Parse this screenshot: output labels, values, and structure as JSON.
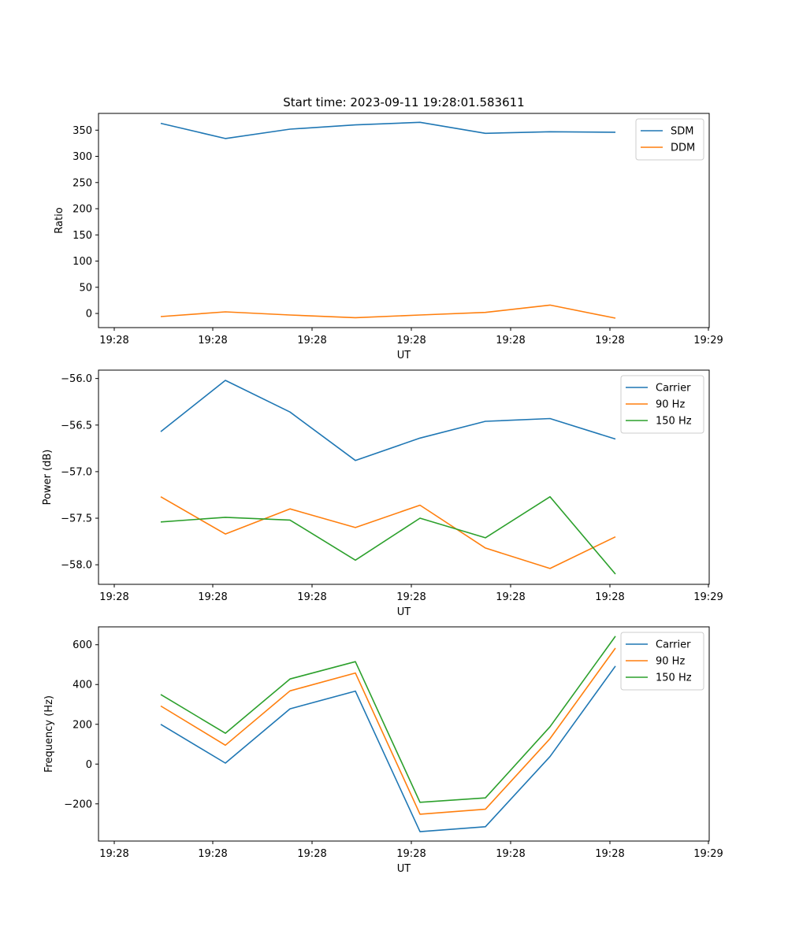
{
  "chart_data": [
    {
      "type": "line",
      "title": "Start time: 2023-09-11 19:28:01.583611",
      "xlabel": "UT",
      "ylabel": "Ratio",
      "x_tick_labels": [
        "19:28",
        "19:28",
        "19:28",
        "19:28",
        "19:28",
        "19:28",
        "19:29"
      ],
      "ylim": [
        -27,
        382
      ],
      "y_ticks": [
        0,
        50,
        100,
        150,
        200,
        250,
        300,
        350
      ],
      "y_tick_labels": [
        "0",
        "50",
        "100",
        "150",
        "200",
        "250",
        "300",
        "350"
      ],
      "legend_position": "top-right",
      "series": [
        {
          "name": "SDM",
          "color": "#1f77b4",
          "values": [
            363,
            334,
            352,
            360,
            365,
            344,
            347,
            346
          ]
        },
        {
          "name": "DDM",
          "color": "#ff7f0e",
          "values": [
            -6,
            3,
            -3,
            -8,
            -3,
            2,
            16,
            -9
          ]
        }
      ]
    },
    {
      "type": "line",
      "title": "",
      "xlabel": "UT",
      "ylabel": "Power (dB)",
      "x_tick_labels": [
        "19:28",
        "19:28",
        "19:28",
        "19:28",
        "19:28",
        "19:28",
        "19:29"
      ],
      "ylim": [
        -58.21,
        -55.91
      ],
      "y_ticks": [
        -58.0,
        -57.5,
        -57.0,
        -56.5,
        -56.0
      ],
      "y_tick_labels": [
        "−58.0",
        "−57.5",
        "−57.0",
        "−56.5",
        "−56.0"
      ],
      "legend_position": "top-right",
      "series": [
        {
          "name": "Carrier",
          "color": "#1f77b4",
          "values": [
            -56.57,
            -56.02,
            -56.36,
            -56.88,
            -56.64,
            -56.46,
            -56.43,
            -56.65
          ]
        },
        {
          "name": "90 Hz",
          "color": "#ff7f0e",
          "values": [
            -57.27,
            -57.67,
            -57.4,
            -57.6,
            -57.36,
            -57.82,
            -58.04,
            -57.7
          ]
        },
        {
          "name": "150 Hz",
          "color": "#2ca02c",
          "values": [
            -57.54,
            -57.49,
            -57.52,
            -57.95,
            -57.5,
            -57.71,
            -57.27,
            -58.1
          ]
        }
      ]
    },
    {
      "type": "line",
      "title": "",
      "xlabel": "UT",
      "ylabel": "Frequency (Hz)",
      "x_tick_labels": [
        "19:28",
        "19:28",
        "19:28",
        "19:28",
        "19:28",
        "19:28",
        "19:29"
      ],
      "ylim": [
        -387,
        690
      ],
      "y_ticks": [
        -200,
        0,
        200,
        400,
        600
      ],
      "y_tick_labels": [
        "−200",
        "0",
        "200",
        "400",
        "600"
      ],
      "legend_position": "top-right",
      "series": [
        {
          "name": "Carrier",
          "color": "#1f77b4",
          "values": [
            200,
            5,
            278,
            367,
            -340,
            -315,
            38,
            493
          ]
        },
        {
          "name": "90 Hz",
          "color": "#ff7f0e",
          "values": [
            292,
            95,
            368,
            458,
            -252,
            -227,
            128,
            583
          ]
        },
        {
          "name": "150 Hz",
          "color": "#2ca02c",
          "values": [
            350,
            155,
            428,
            515,
            -192,
            -170,
            188,
            643
          ]
        }
      ]
    }
  ]
}
